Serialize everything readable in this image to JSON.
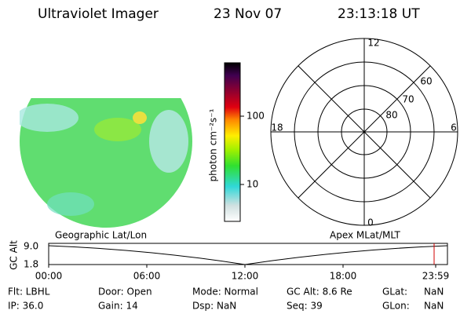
{
  "header": {
    "instrument": "Ultraviolet Imager",
    "date": "23 Nov 07",
    "time": "23:13:18 UT"
  },
  "colorbar": {
    "label": "photon cm⁻²s⁻¹",
    "ticks": [
      "100",
      "10"
    ]
  },
  "polar": {
    "hours": [
      "12",
      "18",
      "6",
      "0"
    ],
    "latitudes": [
      "60",
      "70",
      "80"
    ]
  },
  "timeline": {
    "left_label": "Geographic Lat/Lon",
    "right_label": "Apex MLat/MLT",
    "axis_label": "GC Alt",
    "y_labels": [
      "9.0",
      "1.8"
    ],
    "x_labels": [
      "00:00",
      "06:00",
      "12:00",
      "18:00",
      "23:59"
    ]
  },
  "footer": {
    "rows": [
      [
        "Flt: LBHL",
        "Door: Open",
        "Mode: Normal",
        "GC Alt: 8.6 Re",
        "GLat:",
        "NaN"
      ],
      [
        "IP: 36.0",
        "Gain: 14",
        "Dsp: NaN",
        "Seq: 39",
        "GLon:",
        "NaN"
      ]
    ]
  }
}
